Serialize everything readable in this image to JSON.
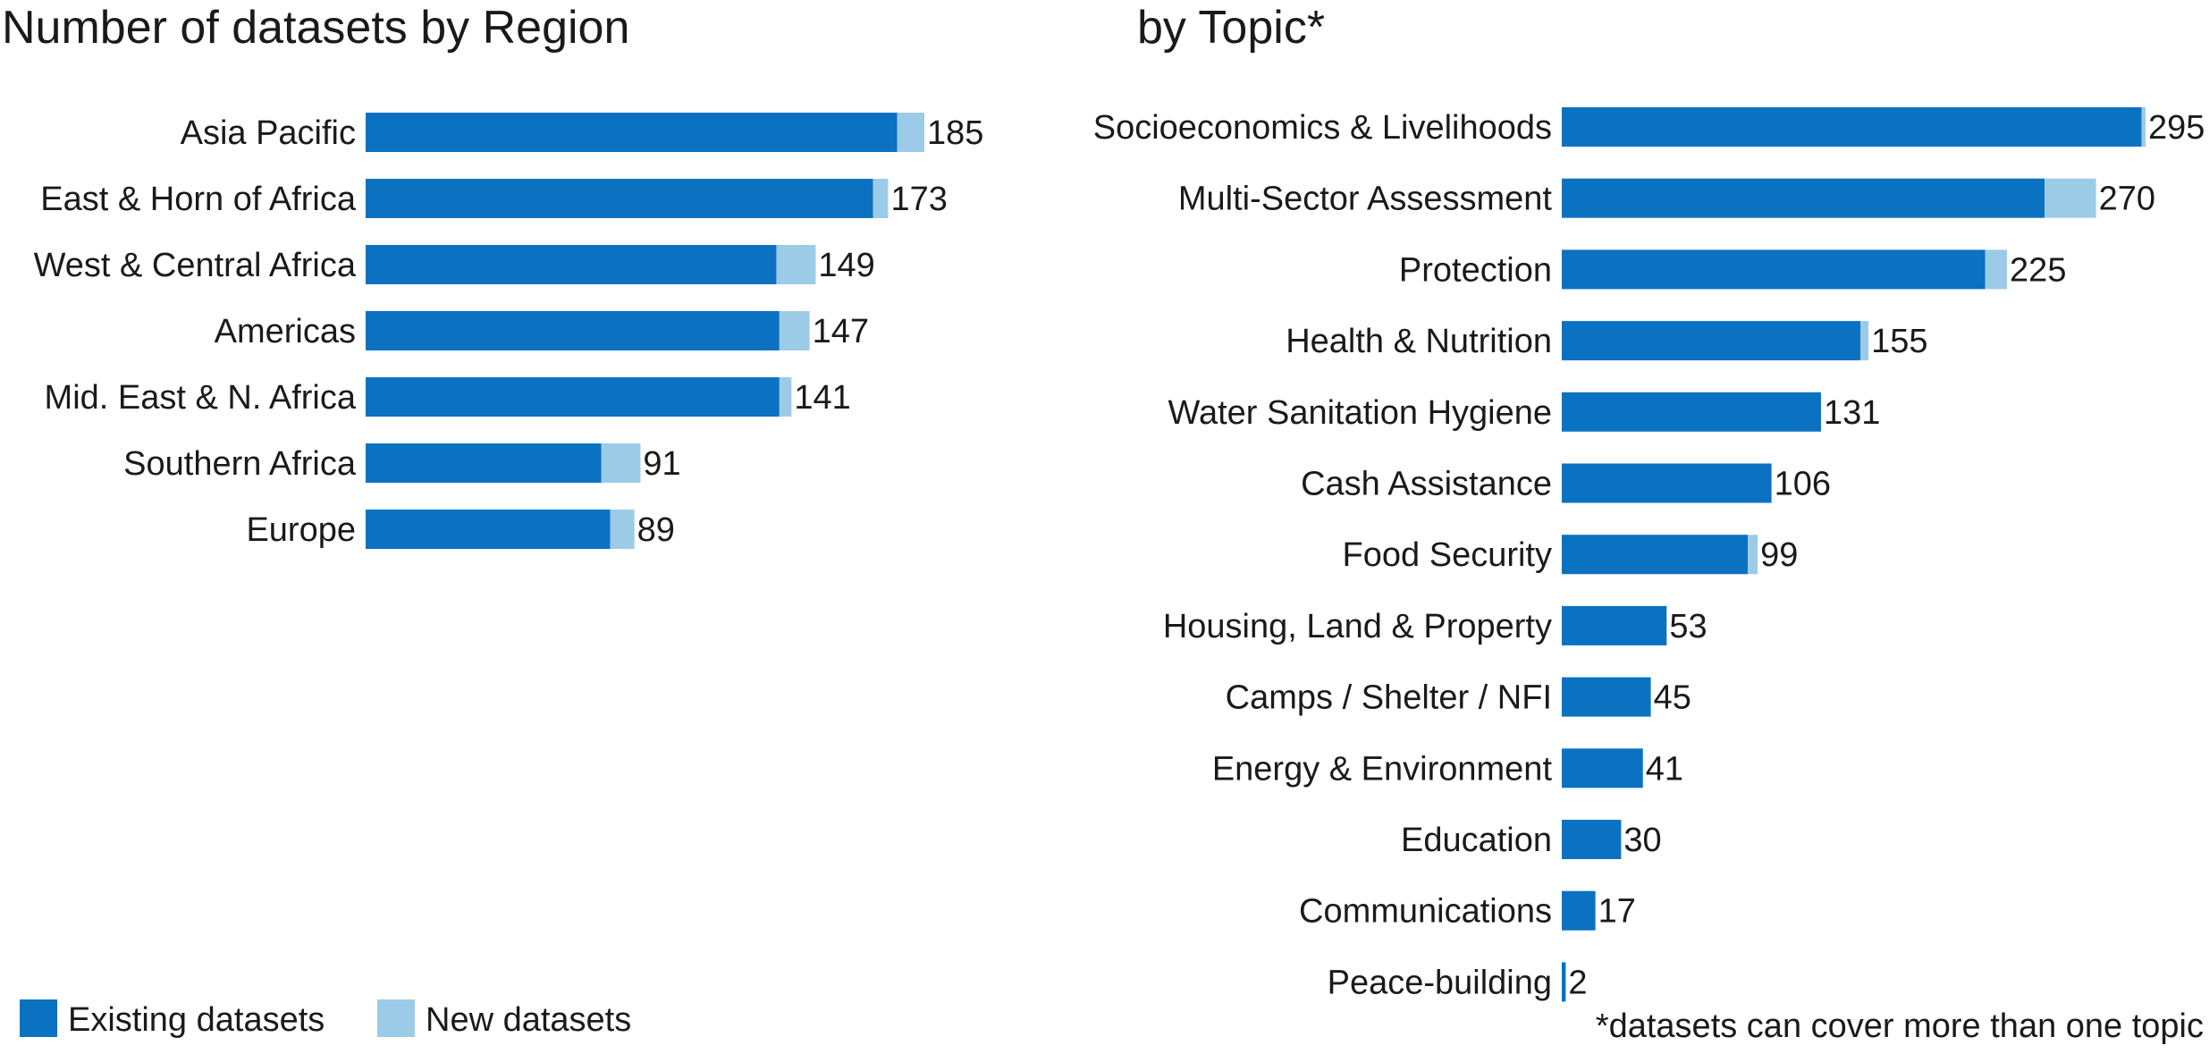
{
  "colors": {
    "existing": "#0b72c1",
    "new": "#9ccbe8"
  },
  "legend": {
    "existing_label": "Existing datasets",
    "new_label": "New datasets"
  },
  "footnote": "*datasets can cover more than one topic",
  "chart_data": [
    {
      "type": "bar",
      "orientation": "horizontal",
      "stacked": true,
      "title": "Number of datasets by Region",
      "categories": [
        "Asia Pacific",
        "East & Horn of Africa",
        "West & Central Africa",
        "Americas",
        "Mid. East & N. Africa",
        "Southern Africa",
        "Europe"
      ],
      "series": [
        {
          "name": "Existing datasets",
          "values": [
            176,
            168,
            136,
            137,
            137,
            78,
            81
          ]
        },
        {
          "name": "New datasets",
          "values": [
            9,
            5,
            13,
            10,
            4,
            13,
            8
          ]
        }
      ],
      "totals": [
        185,
        173,
        149,
        147,
        141,
        91,
        89
      ],
      "xlim": [
        0,
        185
      ]
    },
    {
      "type": "bar",
      "orientation": "horizontal",
      "stacked": true,
      "title": "by Topic*",
      "categories": [
        "Socioeconomics & Livelihoods",
        "Multi-Sector Assessment",
        "Protection",
        "Health & Nutrition",
        "Water Sanitation Hygiene",
        "Cash Assistance",
        "Food Security",
        "Housing, Land & Property",
        "Camps / Shelter / NFI",
        "Energy & Environment",
        "Education",
        "Communications",
        "Peace-building"
      ],
      "series": [
        {
          "name": "Existing datasets",
          "values": [
            293,
            244,
            214,
            151,
            131,
            106,
            94,
            53,
            45,
            41,
            30,
            17,
            2
          ]
        },
        {
          "name": "New datasets",
          "values": [
            2,
            26,
            11,
            4,
            0,
            0,
            5,
            0,
            0,
            0,
            0,
            0,
            0
          ]
        }
      ],
      "totals": [
        295,
        270,
        225,
        155,
        131,
        106,
        99,
        53,
        45,
        41,
        30,
        17,
        2
      ],
      "xlim": [
        0,
        295
      ]
    }
  ]
}
